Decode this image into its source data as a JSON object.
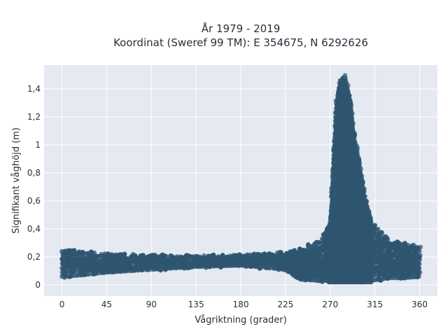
{
  "chart_data": {
    "type": "scatter",
    "title_line1": "År 1979 - 2019",
    "title_line2": "Koordinat (Sweref 99 TM): E 354675, N 6292626",
    "xlabel": "Vågriktning (grader)",
    "ylabel": "Signifikant våghöjd (m)",
    "xlim": [
      -18,
      378
    ],
    "ylim": [
      -0.08,
      1.57
    ],
    "x_ticks": [
      0,
      45,
      90,
      135,
      180,
      225,
      270,
      315,
      360
    ],
    "y_ticks": [
      0,
      0.2,
      0.4,
      0.6,
      0.8,
      1,
      1.2,
      1.4
    ],
    "y_tick_labels": [
      "0",
      "0,2",
      "0,4",
      "0,6",
      "0,8",
      "1",
      "1,2",
      "1,4"
    ],
    "grid": true,
    "legend": "none",
    "marker_color": "#2f5570",
    "envelope": [
      [
        0,
        0.05,
        0.26
      ],
      [
        20,
        0.06,
        0.25
      ],
      [
        45,
        0.08,
        0.23
      ],
      [
        90,
        0.1,
        0.22
      ],
      [
        135,
        0.12,
        0.21
      ],
      [
        180,
        0.13,
        0.22
      ],
      [
        225,
        0.1,
        0.24
      ],
      [
        240,
        0.03,
        0.27
      ],
      [
        260,
        0.02,
        0.32
      ],
      [
        270,
        0.02,
        0.45
      ],
      [
        276,
        0.02,
        1.3
      ],
      [
        280,
        0.02,
        1.47
      ],
      [
        285,
        0.02,
        1.5
      ],
      [
        290,
        0.02,
        1.35
      ],
      [
        295,
        0.02,
        1.05
      ],
      [
        300,
        0.02,
        0.85
      ],
      [
        305,
        0.02,
        0.65
      ],
      [
        310,
        0.02,
        0.5
      ],
      [
        320,
        0.03,
        0.4
      ],
      [
        330,
        0.04,
        0.33
      ],
      [
        345,
        0.04,
        0.3
      ],
      [
        360,
        0.05,
        0.28
      ]
    ]
  }
}
